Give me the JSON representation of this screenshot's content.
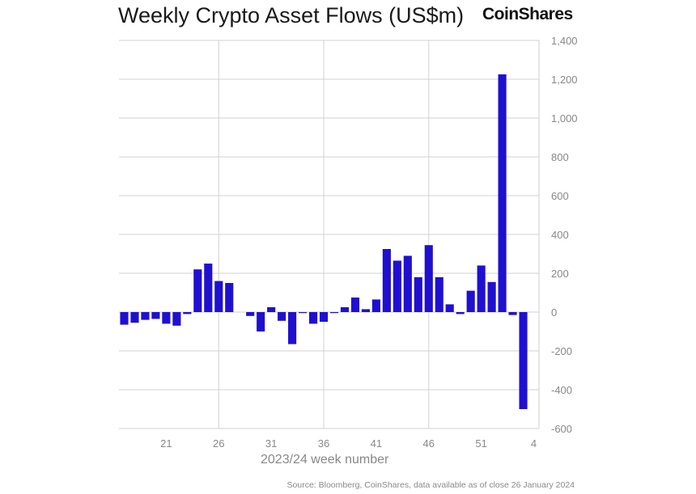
{
  "chart_data": {
    "type": "bar",
    "title": "Weekly Crypto Asset Flows (US$m)",
    "xlabel": "2023/24 week number",
    "ylabel": "",
    "ylim": [
      -600,
      1400
    ],
    "y_ticks": [
      1400,
      1200,
      1000,
      800,
      600,
      400,
      200,
      0,
      -200,
      -400,
      -600
    ],
    "y_tick_labels": [
      "1,400",
      "1,200",
      "1,000",
      "800",
      "600",
      "400",
      "200",
      "0",
      "-200",
      "-400",
      "-600"
    ],
    "x_tick_labels": [
      "21",
      "26",
      "31",
      "36",
      "41",
      "46",
      "51",
      "4"
    ],
    "weeks": [
      17,
      18,
      19,
      20,
      21,
      22,
      23,
      24,
      25,
      26,
      27,
      28,
      29,
      30,
      31,
      32,
      33,
      34,
      35,
      36,
      37,
      38,
      39,
      40,
      41,
      42,
      43,
      44,
      45,
      46,
      47,
      48,
      49,
      50,
      51,
      52,
      1,
      2,
      3,
      4
    ],
    "values": [
      -65,
      -55,
      -40,
      -35,
      -60,
      -70,
      -10,
      220,
      250,
      160,
      150,
      0,
      -20,
      -100,
      25,
      -45,
      -165,
      -5,
      -60,
      -50,
      -5,
      25,
      75,
      15,
      65,
      325,
      265,
      290,
      180,
      345,
      180,
      40,
      -10,
      110,
      240,
      155,
      1225,
      -15,
      -500,
      0
    ],
    "bar_color": "#1f10d1",
    "grid": true
  },
  "brand": "CoinShares",
  "source": "Source: Bloomberg, CoinShares, data available as of close 26 January 2024"
}
